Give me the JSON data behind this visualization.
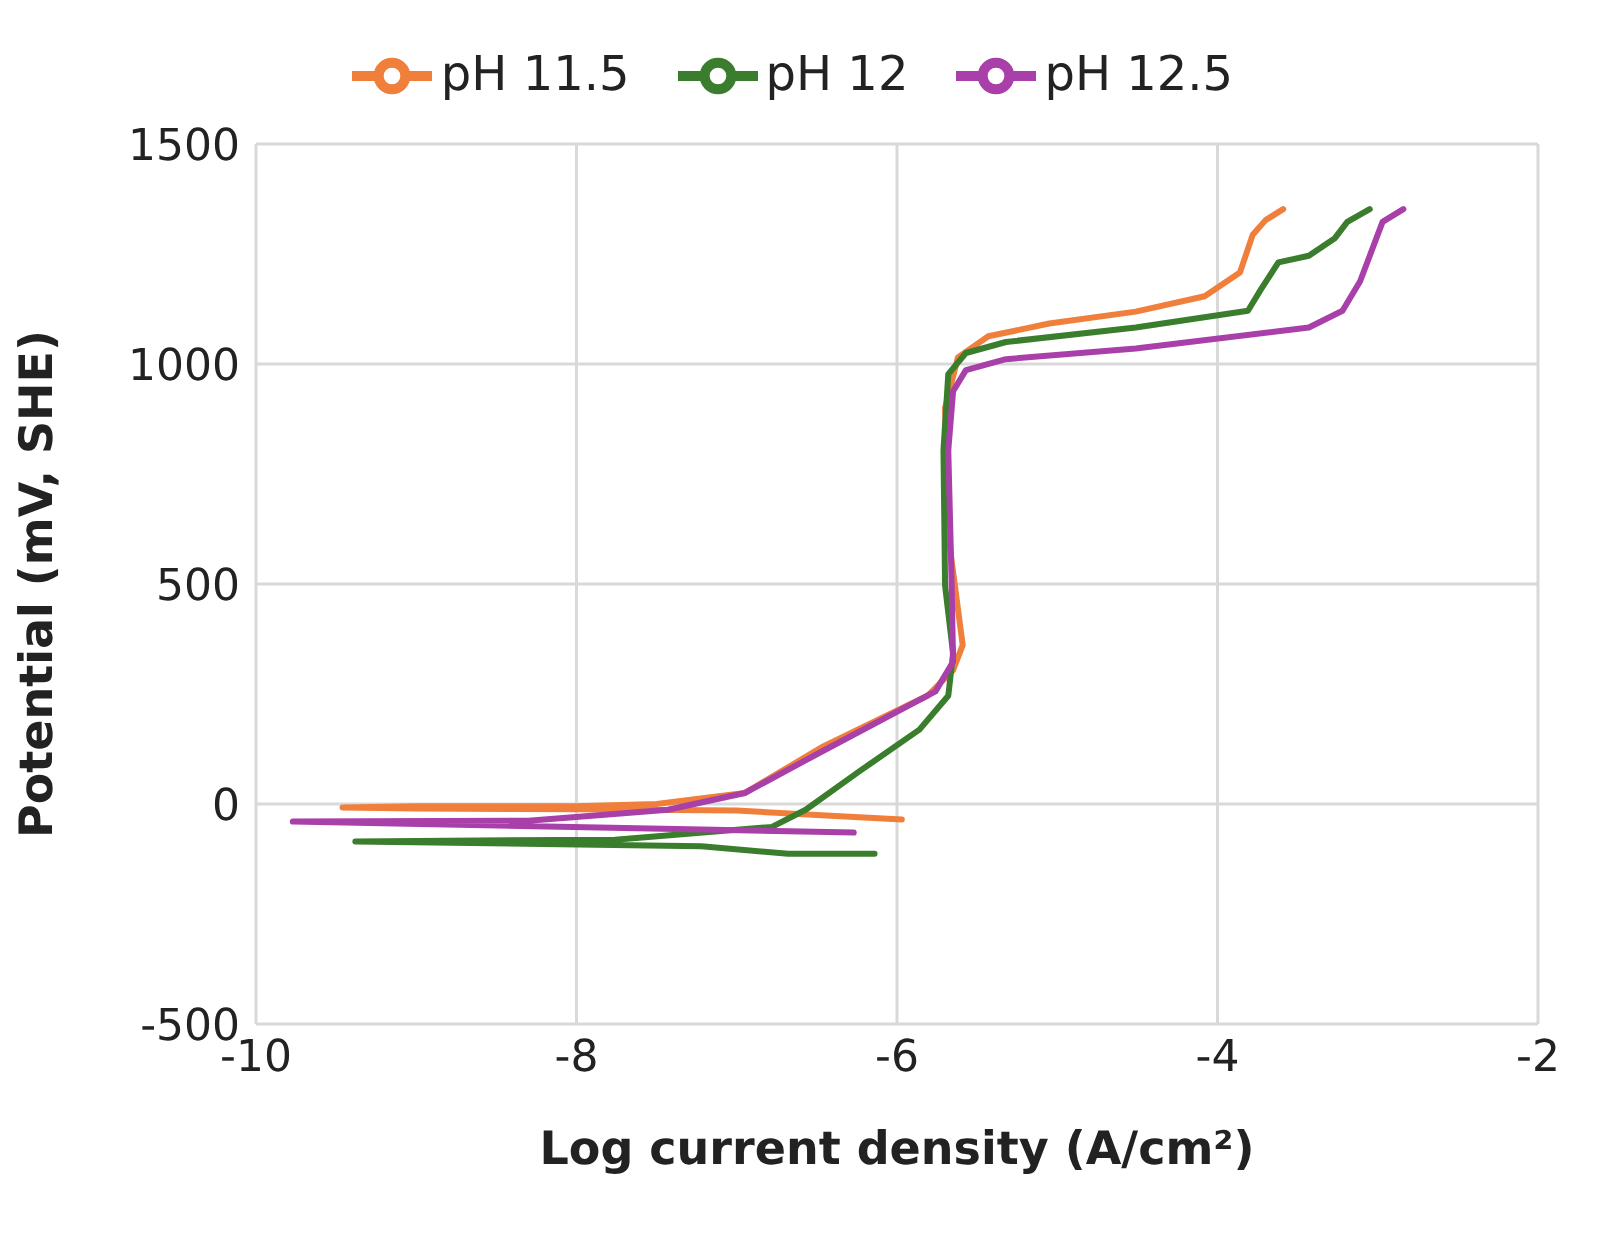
{
  "chart_data": {
    "type": "line",
    "xlabel": "Log current density (A/cm²)",
    "ylabel": "Potential (mV, SHE)",
    "xlim": [
      -10,
      -2
    ],
    "xticks": [
      -10,
      -8,
      -6,
      -4,
      -2
    ],
    "ylim": [
      -500,
      1500
    ],
    "yticks": [
      -500,
      0,
      500,
      1000,
      1500
    ],
    "grid": true,
    "legend": "top",
    "marker": "none",
    "line_style": "solid",
    "series": [
      {
        "name": "pH 11.5",
        "color": "#f07f3c",
        "x": [
          -5.97,
          -6.5,
          -7,
          -8,
          -9,
          -9.46,
          -9,
          -8,
          -7.5,
          -6.95,
          -6.46,
          -5.81,
          -5.65,
          -5.59,
          -5.68,
          -5.7,
          -5.62,
          -5.43,
          -5.05,
          -4.51,
          -4.08,
          -3.86,
          -3.78,
          -3.7,
          -3.59
        ],
        "values": [
          -35,
          -25,
          -15,
          -12,
          -10,
          -8,
          -5,
          -5,
          0,
          25,
          131,
          246,
          304,
          361,
          611,
          900,
          1015,
          1063,
          1092,
          1119,
          1154,
          1208,
          1294,
          1327,
          1352
        ]
      },
      {
        "name": "pH 12",
        "color": "#3a7d2c",
        "x": [
          -6.14,
          -6.68,
          -7.22,
          -9.38,
          -7.76,
          -6.78,
          -6.57,
          -6.24,
          -5.86,
          -5.68,
          -5.65,
          -5.7,
          -5.71,
          -5.68,
          -5.57,
          -5.32,
          -4.51,
          -3.81,
          -3.73,
          -3.62,
          -3.43,
          -3.27,
          -3.19,
          -3.05
        ],
        "values": [
          -113,
          -113,
          -96,
          -85,
          -81,
          -52,
          -13,
          73,
          169,
          246,
          342,
          496,
          804,
          977,
          1025,
          1050,
          1083,
          1121,
          1169,
          1231,
          1246,
          1285,
          1323,
          1352
        ]
      },
      {
        "name": "pH 12.5",
        "color": "#a93fa8",
        "x": [
          -6.27,
          -7.22,
          -9.77,
          -8.3,
          -7.43,
          -6.95,
          -6.46,
          -5.76,
          -5.65,
          -5.66,
          -5.68,
          -5.65,
          -5.57,
          -5.32,
          -4.51,
          -3.43,
          -3.22,
          -3.11,
          -2.97,
          -2.84
        ],
        "values": [
          -65,
          -58,
          -40,
          -38,
          -13,
          25,
          121,
          256,
          323,
          515,
          804,
          938,
          986,
          1011,
          1035,
          1083,
          1121,
          1188,
          1323,
          1352
        ]
      }
    ]
  }
}
